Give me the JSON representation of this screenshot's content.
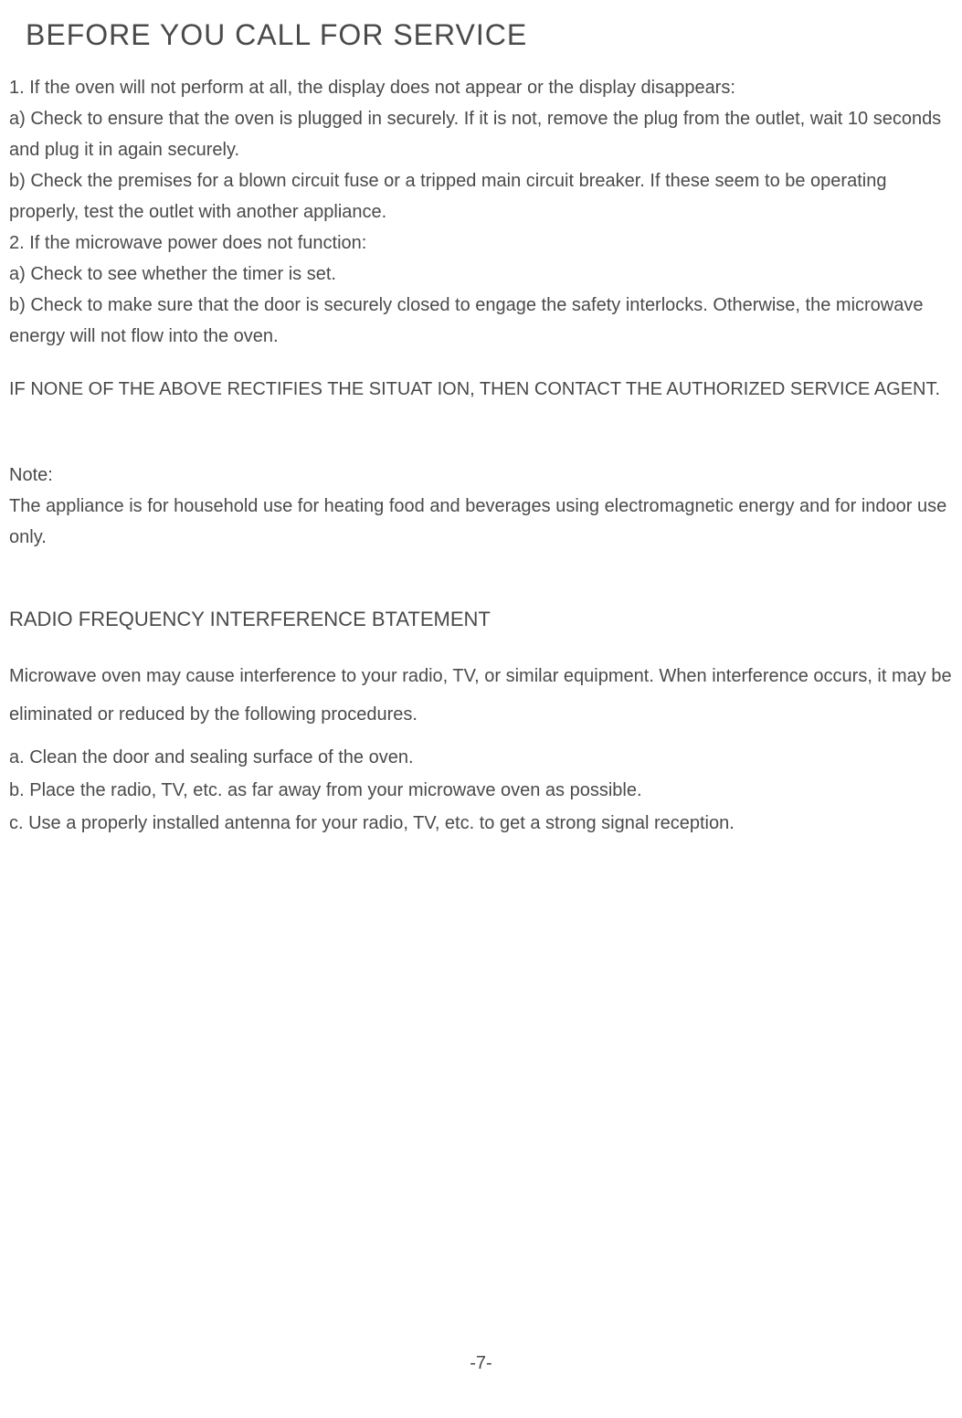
{
  "title": "BEFORE YOU CALL FOR SERVICE",
  "section1": {
    "item1_heading": "1. If the oven will not perform at all, the display does not appear or the display disappears:",
    "item1_a": "a) Check to ensure that the oven is plugged in securely. If it is not, remove the plug from the outlet, wait 10 seconds and plug it in again securely.",
    "item1_b": "b) Check the premises for a blown circuit fuse or a tripped main circuit breaker. If these seem to be operating properly, test the outlet with another appliance.",
    "item2_heading": "2. If the microwave power does not function:",
    "item2_a": "a) Check to see whether the timer is set.",
    "item2_b": "b) Check to make sure that the door is securely closed to engage the safety interlocks. Otherwise, the microwave energy will not flow into the oven."
  },
  "callout": "IF NONE OF THE ABOVE RECTIFIES THE SITUAT ION, THEN CONTACT THE AUTHORIZED SERVICE AGENT.",
  "note": {
    "label": "Note:",
    "text": "The appliance is for household use for heating food and beverages using electromagnetic energy and for indoor use only."
  },
  "rfi": {
    "title": "RADIO FREQUENCY INTERFERENCE BTATEMENT",
    "intro": "Microwave oven may cause interference to your radio, TV, or similar equipment. When interference occurs, it may be eliminated or reduced by the following procedures.",
    "a": "a. Clean the door and sealing surface of the oven.",
    "b": "b. Place the radio, TV, etc. as far away from your microwave oven as possible.",
    "c": "c. Use a properly installed antenna for your radio, TV, etc. to get a strong signal reception."
  },
  "page_number": "-7-"
}
